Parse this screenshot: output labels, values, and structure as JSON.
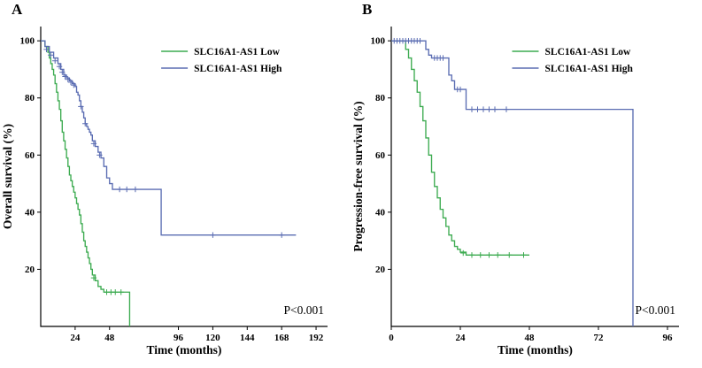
{
  "figure": {
    "panels": [
      {
        "letter": "A"
      },
      {
        "letter": "B"
      }
    ]
  },
  "chart_data": [
    {
      "type": "line",
      "subtype": "kaplan-meier",
      "panel": "A",
      "title": "",
      "xlabel": "Time (months)",
      "ylabel": "Overall survival (%)",
      "xlim": [
        0,
        200
      ],
      "ylim": [
        0,
        105
      ],
      "xticks": [
        24,
        48,
        96,
        120,
        144,
        168,
        192
      ],
      "yticks": [
        20,
        40,
        60,
        80,
        100
      ],
      "grid": false,
      "legend_position": "top-right-inside",
      "annotation": "P<0.001",
      "series": [
        {
          "name": "SLC16A1-AS1 Low",
          "color": "#3cab50",
          "steps": [
            [
              0,
              100
            ],
            [
              3,
              98
            ],
            [
              5,
              96
            ],
            [
              6,
              94
            ],
            [
              7,
              92
            ],
            [
              8,
              90
            ],
            [
              9,
              88
            ],
            [
              10,
              85
            ],
            [
              11,
              82
            ],
            [
              12,
              79
            ],
            [
              13,
              76
            ],
            [
              14,
              72
            ],
            [
              15,
              68
            ],
            [
              16,
              65
            ],
            [
              17,
              62
            ],
            [
              18,
              59
            ],
            [
              19,
              56
            ],
            [
              20,
              53
            ],
            [
              21,
              51
            ],
            [
              22,
              49
            ],
            [
              23,
              47
            ],
            [
              24,
              45
            ],
            [
              25,
              43
            ],
            [
              26,
              41
            ],
            [
              27,
              39
            ],
            [
              28,
              36
            ],
            [
              29,
              33
            ],
            [
              30,
              30
            ],
            [
              31,
              28
            ],
            [
              32,
              26
            ],
            [
              33,
              24
            ],
            [
              34,
              22
            ],
            [
              35,
              20
            ],
            [
              36,
              18
            ],
            [
              38,
              16
            ],
            [
              40,
              14
            ],
            [
              42,
              13
            ],
            [
              44,
              12
            ],
            [
              62,
              12
            ],
            [
              62,
              0
            ]
          ],
          "censors": [
            [
              37,
              17
            ],
            [
              46,
              12
            ],
            [
              49,
              12
            ],
            [
              52,
              12
            ],
            [
              56,
              12
            ]
          ]
        },
        {
          "name": "SLC16A1-AS1 High",
          "color": "#5a6cb2",
          "steps": [
            [
              0,
              100
            ],
            [
              3,
              98
            ],
            [
              6,
              96
            ],
            [
              9,
              94
            ],
            [
              12,
              92
            ],
            [
              14,
              90
            ],
            [
              16,
              88
            ],
            [
              18,
              87
            ],
            [
              20,
              86
            ],
            [
              22,
              85
            ],
            [
              24,
              84
            ],
            [
              25,
              82
            ],
            [
              26,
              81
            ],
            [
              27,
              79
            ],
            [
              28,
              77
            ],
            [
              29,
              75
            ],
            [
              30,
              73
            ],
            [
              31,
              71
            ],
            [
              32,
              70
            ],
            [
              33,
              69
            ],
            [
              34,
              68
            ],
            [
              35,
              67
            ],
            [
              36,
              65
            ],
            [
              38,
              63
            ],
            [
              40,
              61
            ],
            [
              42,
              59
            ],
            [
              44,
              56
            ],
            [
              46,
              52
            ],
            [
              48,
              50
            ],
            [
              50,
              48
            ],
            [
              84,
              48
            ],
            [
              84,
              32
            ],
            [
              178,
              32
            ]
          ],
          "censors": [
            [
              4,
              97
            ],
            [
              7,
              95
            ],
            [
              10,
              93
            ],
            [
              13,
              91
            ],
            [
              15,
              89
            ],
            [
              17,
              87.5
            ],
            [
              19,
              86.5
            ],
            [
              21,
              85.5
            ],
            [
              23,
              84.5
            ],
            [
              28,
              77
            ],
            [
              31,
              71
            ],
            [
              37,
              64
            ],
            [
              41,
              60
            ],
            [
              55,
              48
            ],
            [
              60,
              48
            ],
            [
              66,
              48
            ],
            [
              120,
              32
            ],
            [
              168,
              32
            ]
          ]
        }
      ]
    },
    {
      "type": "line",
      "subtype": "kaplan-meier",
      "panel": "B",
      "title": "",
      "xlabel": "Time (months)",
      "ylabel": "Progression-free survival (%)",
      "xlim": [
        0,
        100
      ],
      "ylim": [
        0,
        105
      ],
      "xticks": [
        0,
        24,
        48,
        72,
        96
      ],
      "yticks": [
        20,
        40,
        60,
        80,
        100
      ],
      "grid": false,
      "legend_position": "top-right-inside",
      "annotation": "P<0.001",
      "series": [
        {
          "name": "SLC16A1-AS1 Low",
          "color": "#3cab50",
          "steps": [
            [
              0,
              100
            ],
            [
              4,
              100
            ],
            [
              5,
              97
            ],
            [
              6,
              94
            ],
            [
              7,
              90
            ],
            [
              8,
              86
            ],
            [
              9,
              82
            ],
            [
              10,
              77
            ],
            [
              11,
              72
            ],
            [
              12,
              66
            ],
            [
              13,
              60
            ],
            [
              14,
              54
            ],
            [
              15,
              49
            ],
            [
              16,
              45
            ],
            [
              17,
              41
            ],
            [
              18,
              38
            ],
            [
              19,
              35
            ],
            [
              20,
              32
            ],
            [
              21,
              30
            ],
            [
              22,
              28
            ],
            [
              23,
              27
            ],
            [
              24,
              26
            ],
            [
              26,
              25
            ],
            [
              48,
              25
            ]
          ],
          "censors": [
            [
              25,
              25.7
            ],
            [
              28,
              25
            ],
            [
              31,
              25
            ],
            [
              34,
              25
            ],
            [
              37,
              25
            ],
            [
              41,
              25
            ],
            [
              46,
              25
            ]
          ]
        },
        {
          "name": "SLC16A1-AS1 High",
          "color": "#5a6cb2",
          "steps": [
            [
              0,
              100
            ],
            [
              11,
              100
            ],
            [
              12,
              97
            ],
            [
              13,
              95
            ],
            [
              14,
              94
            ],
            [
              19,
              94
            ],
            [
              20,
              88
            ],
            [
              21,
              86
            ],
            [
              22,
              83
            ],
            [
              25,
              83
            ],
            [
              26,
              76
            ],
            [
              84,
              76
            ],
            [
              84,
              0
            ]
          ],
          "censors": [
            [
              1,
              100
            ],
            [
              2,
              100
            ],
            [
              3,
              100
            ],
            [
              4,
              100
            ],
            [
              5,
              100
            ],
            [
              6,
              100
            ],
            [
              7,
              100
            ],
            [
              8,
              100
            ],
            [
              9,
              100
            ],
            [
              10,
              100
            ],
            [
              15,
              94
            ],
            [
              16,
              94
            ],
            [
              17,
              94
            ],
            [
              18,
              94
            ],
            [
              23,
              83
            ],
            [
              24,
              83
            ],
            [
              28,
              76
            ],
            [
              30,
              76
            ],
            [
              32,
              76
            ],
            [
              34,
              76
            ],
            [
              36,
              76
            ],
            [
              40,
              76
            ]
          ]
        }
      ]
    }
  ]
}
